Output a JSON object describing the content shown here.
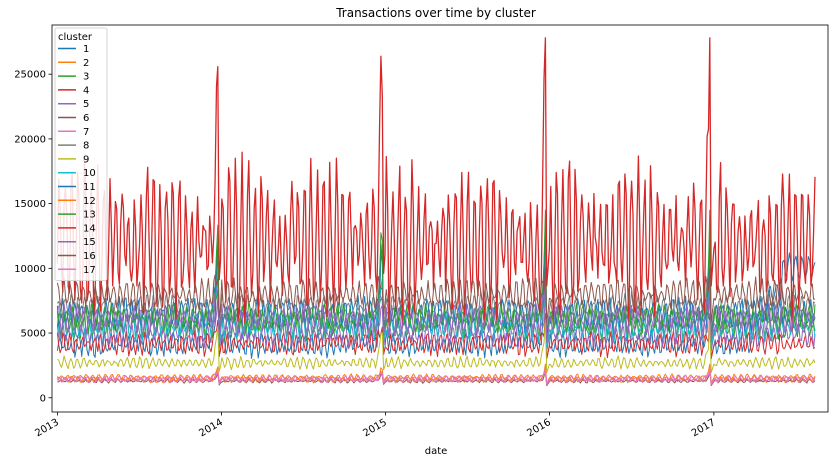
{
  "chart_data": {
    "type": "line",
    "title": "Transactions over time by cluster",
    "xlabel": "date",
    "ylabel": "",
    "x_tick_labels": [
      "2013",
      "2014",
      "2015",
      "2016",
      "2017"
    ],
    "x_tick_years": [
      2013,
      2014,
      2015,
      2016,
      2017
    ],
    "xlim": [
      "2012-12-20",
      "2017-09-12"
    ],
    "x_end": "2017-08-15",
    "y_ticks": [
      0,
      5000,
      10000,
      15000,
      20000,
      25000
    ],
    "y_tick_labels": [
      "0",
      "5000",
      "10000",
      "15000",
      "20000",
      "25000"
    ],
    "ylim": [
      -1100,
      28800
    ],
    "grid": false,
    "legend": {
      "title": "cluster",
      "placement": "top-left"
    },
    "series": [
      {
        "name": "1",
        "color": "#1f77b4",
        "base": 4200,
        "amp": 700,
        "end_level": 10000,
        "peak": 12500
      },
      {
        "name": "2",
        "color": "#ff7f0e",
        "base": 1400,
        "amp": 150,
        "peak": 2200
      },
      {
        "name": "3",
        "color": "#2ca02c",
        "base": 5500,
        "amp": 700,
        "peak": 9000
      },
      {
        "name": "4",
        "color": "#d62728",
        "base": 4200,
        "amp": 600,
        "peak": 6500
      },
      {
        "name": "5",
        "color": "#9467bd",
        "base": 5000,
        "amp": 700,
        "peak": 8500
      },
      {
        "name": "6",
        "color": "#8c564b",
        "base": 1300,
        "amp": 100,
        "peak": 2000
      },
      {
        "name": "7",
        "color": "#e377c2",
        "base": 1400,
        "amp": 150,
        "peak": 2000
      },
      {
        "name": "8",
        "color": "#7f7f7f",
        "base": 7000,
        "amp": 700,
        "peak": 13000
      },
      {
        "name": "9",
        "color": "#bcbd22",
        "base": 2700,
        "amp": 300,
        "peak": 6000
      },
      {
        "name": "10",
        "color": "#17becf",
        "base": 5500,
        "amp": 700,
        "peak": 11000
      },
      {
        "name": "11",
        "color": "#1f77b4",
        "base": 6500,
        "amp": 800,
        "peak": 13500
      },
      {
        "name": "12",
        "color": "#ff7f0e",
        "base": 1600,
        "amp": 150,
        "peak": 2600
      },
      {
        "name": "13",
        "color": "#2ca02c",
        "base": 6200,
        "amp": 700,
        "peak": 14500
      },
      {
        "name": "14",
        "color": "#d62728",
        "base": 12000,
        "amp": 4000,
        "peak": 27800
      },
      {
        "name": "15",
        "color": "#9467bd",
        "base": 6000,
        "amp": 800,
        "peak": 9000
      },
      {
        "name": "16",
        "color": "#8c564b",
        "base": 8000,
        "amp": 800,
        "peak": 10000
      },
      {
        "name": "17",
        "color": "#e377c2",
        "base": 1500,
        "amp": 150,
        "peak": 2300
      }
    ]
  }
}
